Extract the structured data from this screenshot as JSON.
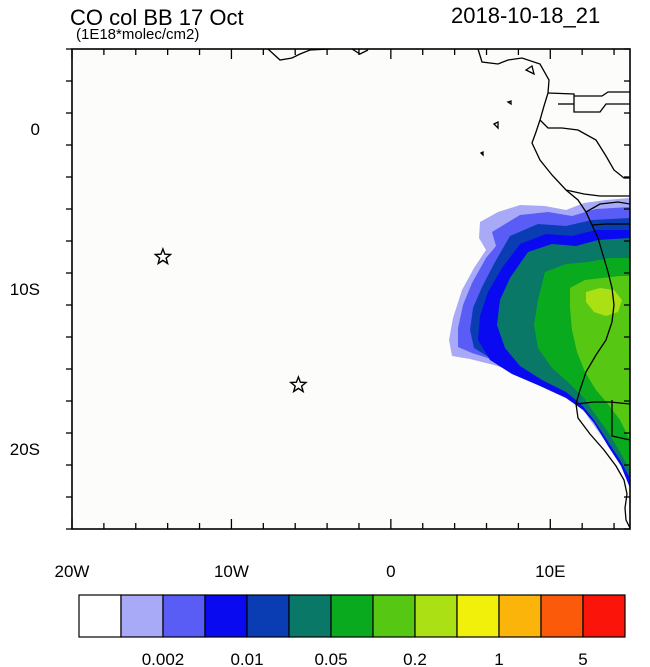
{
  "header": {
    "title": "CO col BB 17 Oct",
    "units": "(1E18*molec/cm2)",
    "timestamp": "2018-10-18_21"
  },
  "axes": {
    "lon_range": [
      -20,
      15
    ],
    "lat_range": [
      -25,
      5
    ],
    "x_ticks": [
      {
        "value": -20,
        "label": "20W"
      },
      {
        "value": -10,
        "label": "10W"
      },
      {
        "value": 0,
        "label": "0"
      },
      {
        "value": 10,
        "label": "10E"
      }
    ],
    "y_ticks": [
      {
        "value": 0,
        "label": "0"
      },
      {
        "value": -10,
        "label": "10S"
      },
      {
        "value": -20,
        "label": "20S"
      }
    ]
  },
  "markers": [
    {
      "name": "star-marker",
      "lon": -14.3,
      "lat": -8.0
    },
    {
      "name": "star-marker",
      "lon": -5.8,
      "lat": -16.0
    }
  ],
  "colorbar": {
    "colors": [
      "#ffffff",
      "#a8aaf8",
      "#5a5cf6",
      "#0a0af0",
      "#0a3cb4",
      "#0a7866",
      "#0aaa1e",
      "#56c814",
      "#aae014",
      "#f0f00a",
      "#fab40a",
      "#fa5a0a",
      "#fa140a"
    ],
    "labels": [
      {
        "after_box": 2,
        "text": "0.002"
      },
      {
        "after_box": 4,
        "text": "0.01"
      },
      {
        "after_box": 6,
        "text": "0.05"
      },
      {
        "after_box": 8,
        "text": "0.2"
      },
      {
        "after_box": 10,
        "text": "1"
      },
      {
        "after_box": 12,
        "text": "5"
      }
    ]
  }
}
